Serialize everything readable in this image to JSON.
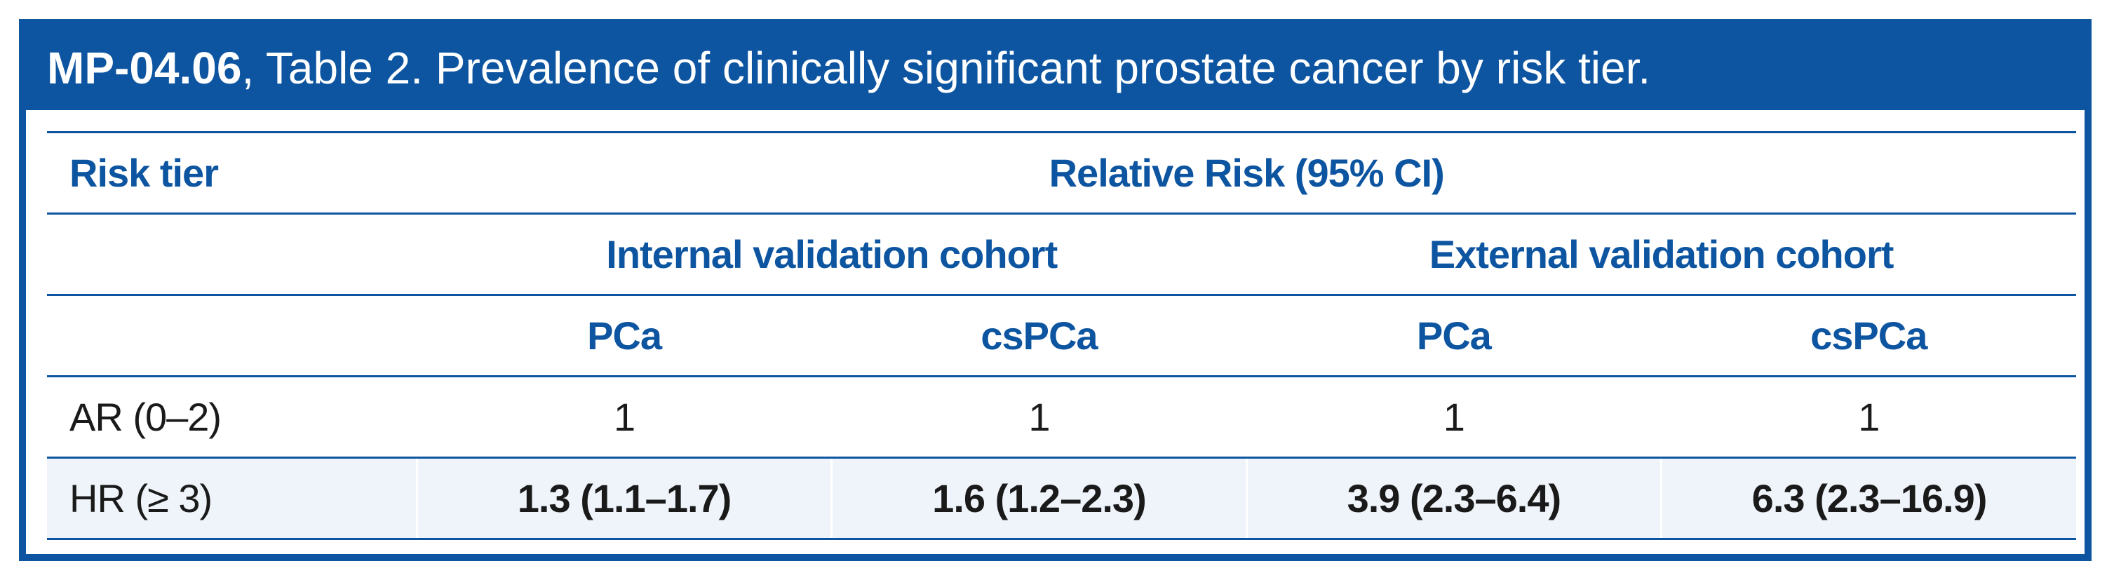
{
  "title": {
    "code": "MP-04.06",
    "text": ", Table 2. Prevalence of clinically significant prostate cancer by risk tier."
  },
  "table": {
    "col_header": "Risk tier",
    "group_header": "Relative Risk (95% CI)",
    "cohorts": [
      "Internal validation cohort",
      "External validation cohort"
    ],
    "subcolumns": [
      "PCa",
      "csPCa",
      "PCa",
      "csPCa"
    ],
    "rows": [
      {
        "label": "AR (0–2)",
        "values": [
          "1",
          "1",
          "1",
          "1"
        ]
      },
      {
        "label": "HR (≥ 3)",
        "values": [
          "1.3 (1.1–1.7)",
          "1.6 (1.2–2.3)",
          "3.9 (2.3–6.4)",
          "6.3 (2.3–16.9)"
        ]
      }
    ]
  },
  "colors": {
    "accent": "#0d55a0",
    "row_shade": "#eef4fa",
    "text": "#1a1a1a"
  }
}
